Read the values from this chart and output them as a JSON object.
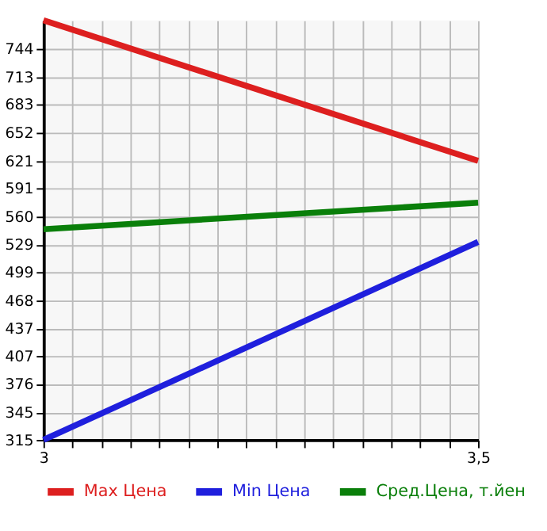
{
  "chart_data": {
    "type": "line",
    "x": [
      3,
      3.5
    ],
    "series": [
      {
        "name": "Max Цена",
        "color": "#dd1f1f",
        "values": [
          775,
          621
        ]
      },
      {
        "name": "Min Цена",
        "color": "#1f1fdd",
        "values": [
          315,
          532
        ]
      },
      {
        "name": "Сред.Цена, т.йен",
        "color": "#0a7f0a",
        "values": [
          546,
          575
        ]
      }
    ],
    "xlim": [
      3,
      3.5
    ],
    "xticks": [
      3,
      {
        "value": 3.0333,
        "label": null
      },
      {
        "value": 3.0667,
        "label": null
      },
      {
        "value": 3.1,
        "label": null
      },
      {
        "value": 3.1333,
        "label": null
      },
      {
        "value": 3.1667,
        "label": null
      },
      {
        "value": 3.2,
        "label": null
      },
      {
        "value": 3.2333,
        "label": null
      },
      {
        "value": 3.2667,
        "label": null
      },
      {
        "value": 3.3,
        "label": null
      },
      {
        "value": 3.3333,
        "label": null
      },
      {
        "value": 3.3667,
        "label": null
      },
      {
        "value": 3.4,
        "label": null
      },
      {
        "value": 3.4333,
        "label": null
      },
      {
        "value": 3.4667,
        "label": null
      },
      {
        "value": 3.5,
        "label": "3,5"
      }
    ],
    "ylim": [
      315,
      775
    ],
    "yticks": [
      315,
      345,
      376,
      407,
      437,
      468,
      499,
      529,
      560,
      591,
      621,
      652,
      683,
      713,
      744
    ],
    "grid": true,
    "legend": "bottom",
    "marker": "none",
    "line_style": "solid"
  }
}
